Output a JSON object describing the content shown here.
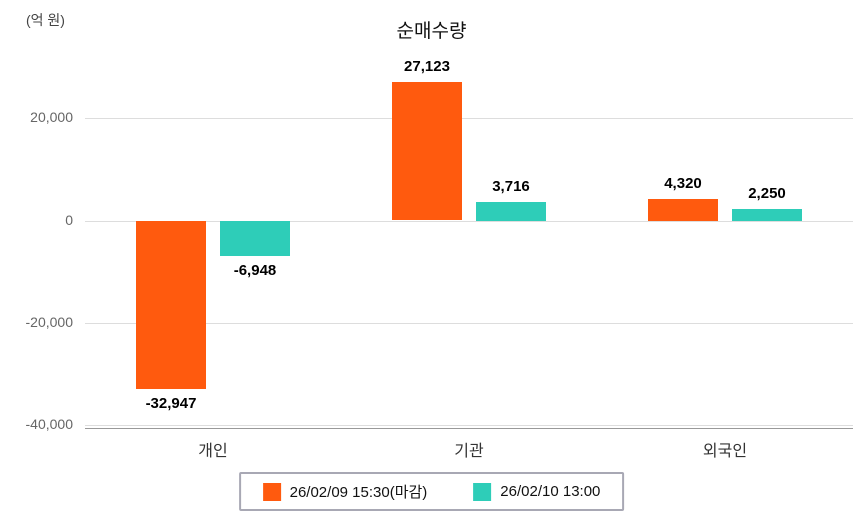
{
  "chart_data": {
    "type": "bar",
    "title": "순매수량",
    "ylabel": "(억 원)",
    "categories": [
      "개인",
      "기관",
      "외국인"
    ],
    "series": [
      {
        "name": "26/02/09 15:30(마감)",
        "color": "#FF5A0E",
        "values": [
          -32947,
          27123,
          4320
        ],
        "labels": [
          "-32,947",
          "27,123",
          "4,320"
        ]
      },
      {
        "name": "26/02/10 13:00",
        "color": "#2ECDB8",
        "values": [
          -6948,
          3716,
          2250
        ],
        "labels": [
          "-6,948",
          "3,716",
          "2,250"
        ]
      }
    ],
    "ylim": [
      -40000,
      32000
    ],
    "yticks": [
      {
        "value": 20000,
        "label": "20,000"
      },
      {
        "value": 0,
        "label": "0"
      },
      {
        "value": -20000,
        "label": "-20,000"
      },
      {
        "value": -40000,
        "label": "-40,000"
      }
    ],
    "grid": true,
    "legend_position": "bottom"
  }
}
